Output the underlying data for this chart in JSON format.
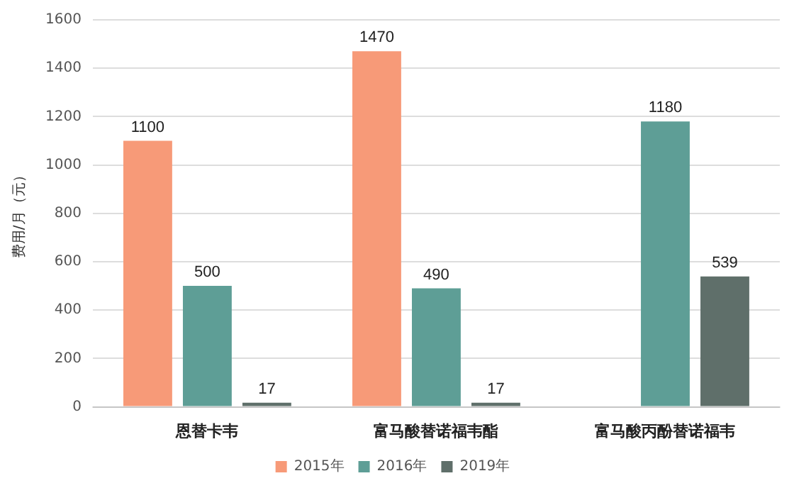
{
  "chart_data": {
    "type": "bar",
    "ylabel": "费用/月（元）",
    "categories": [
      "恩替卡韦",
      "富马酸替诺福韦酯",
      "富马酸丙酚替诺福韦"
    ],
    "series": [
      {
        "name": "2015年",
        "color": "#f79a78",
        "values": [
          1100,
          1470,
          null
        ]
      },
      {
        "name": "2016年",
        "color": "#5e9e96",
        "values": [
          500,
          490,
          1180
        ]
      },
      {
        "name": "2019年",
        "color": "#5f6f6a",
        "values": [
          17,
          17,
          539
        ]
      }
    ],
    "ylim": [
      0,
      1600
    ],
    "yticks": [
      0,
      200,
      400,
      600,
      800,
      1000,
      1200,
      1400,
      1600
    ],
    "grid": "y",
    "legend": "bottom",
    "data_labels": true
  }
}
